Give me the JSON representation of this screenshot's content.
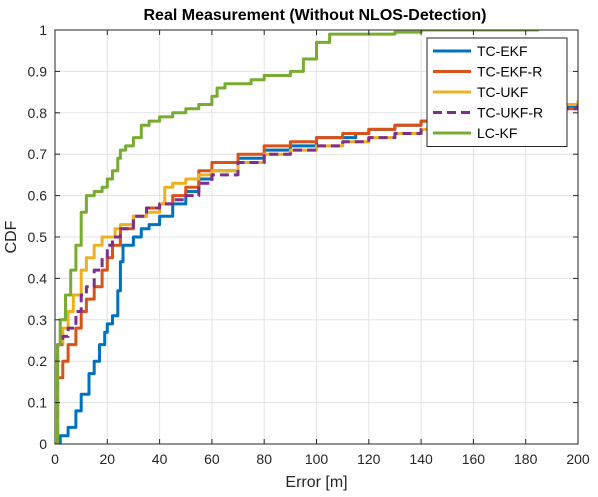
{
  "chart_data": {
    "type": "line",
    "title": "Real Measurement (Without NLOS-Detection)",
    "xlabel": "Error [m]",
    "ylabel": "CDF",
    "xlim": [
      0,
      200
    ],
    "ylim": [
      0,
      1
    ],
    "xticks": [
      0,
      20,
      40,
      60,
      80,
      100,
      120,
      140,
      160,
      180,
      200
    ],
    "yticks": [
      0,
      0.1,
      0.2,
      0.3,
      0.4,
      0.5,
      0.6,
      0.7,
      0.8,
      0.9,
      1
    ],
    "ytick_labels": [
      "0",
      "0.1",
      "0.2",
      "0.3",
      "0.4",
      "0.5",
      "0.6",
      "0.7",
      "0.8",
      "0.9",
      "1"
    ],
    "grid": true,
    "legend_position": "top-right",
    "series": [
      {
        "name": "TC-EKF",
        "color": "#0072BD",
        "style": "solid",
        "x": [
          0,
          2,
          5,
          8,
          10,
          13,
          15,
          17,
          19,
          20,
          22,
          24,
          25,
          26,
          30,
          33,
          36,
          40,
          45,
          50,
          55,
          60,
          70,
          80,
          90,
          100,
          110,
          115,
          120,
          130,
          140,
          150,
          160,
          170,
          180,
          190,
          200
        ],
        "y": [
          0,
          0.02,
          0.04,
          0.08,
          0.12,
          0.17,
          0.2,
          0.24,
          0.27,
          0.29,
          0.31,
          0.37,
          0.44,
          0.48,
          0.5,
          0.52,
          0.53,
          0.55,
          0.58,
          0.61,
          0.64,
          0.66,
          0.69,
          0.71,
          0.72,
          0.74,
          0.74,
          0.75,
          0.76,
          0.77,
          0.78,
          0.79,
          0.8,
          0.805,
          0.81,
          0.815,
          0.82
        ]
      },
      {
        "name": "TC-EKF-R",
        "color": "#D95319",
        "style": "solid",
        "x": [
          0,
          1,
          3,
          5,
          8,
          10,
          12,
          15,
          18,
          20,
          22,
          25,
          30,
          35,
          40,
          45,
          50,
          55,
          60,
          70,
          80,
          90,
          100,
          110,
          115,
          120,
          130,
          140,
          150,
          160,
          170,
          180,
          190,
          200
        ],
        "y": [
          0,
          0.16,
          0.2,
          0.24,
          0.28,
          0.32,
          0.35,
          0.38,
          0.42,
          0.45,
          0.48,
          0.52,
          0.55,
          0.57,
          0.58,
          0.6,
          0.62,
          0.66,
          0.68,
          0.7,
          0.72,
          0.73,
          0.74,
          0.75,
          0.75,
          0.76,
          0.77,
          0.78,
          0.79,
          0.795,
          0.8,
          0.805,
          0.81,
          0.82
        ]
      },
      {
        "name": "TC-UKF",
        "color": "#EDB120",
        "style": "solid",
        "x": [
          0,
          1,
          3,
          5,
          7,
          10,
          12,
          15,
          18,
          20,
          23,
          25,
          30,
          35,
          40,
          42,
          45,
          50,
          55,
          60,
          70,
          80,
          90,
          100,
          110,
          120,
          130,
          140,
          150,
          160,
          170,
          180,
          190,
          200
        ],
        "y": [
          0,
          0.24,
          0.28,
          0.32,
          0.36,
          0.42,
          0.45,
          0.48,
          0.5,
          0.5,
          0.52,
          0.53,
          0.55,
          0.56,
          0.58,
          0.62,
          0.63,
          0.64,
          0.65,
          0.66,
          0.68,
          0.7,
          0.71,
          0.72,
          0.73,
          0.74,
          0.75,
          0.76,
          0.78,
          0.79,
          0.8,
          0.81,
          0.82,
          0.83
        ]
      },
      {
        "name": "TC-UKF-R",
        "color": "#7E2F8E",
        "style": "dashed",
        "x": [
          0,
          1,
          3,
          5,
          8,
          10,
          12,
          15,
          18,
          20,
          22,
          25,
          30,
          35,
          40,
          45,
          50,
          55,
          60,
          70,
          80,
          90,
          100,
          110,
          120,
          130,
          140,
          150,
          160,
          170,
          180,
          190,
          200
        ],
        "y": [
          0,
          0.24,
          0.26,
          0.28,
          0.32,
          0.36,
          0.38,
          0.42,
          0.45,
          0.48,
          0.5,
          0.52,
          0.55,
          0.57,
          0.58,
          0.59,
          0.6,
          0.63,
          0.65,
          0.68,
          0.7,
          0.71,
          0.72,
          0.73,
          0.74,
          0.75,
          0.76,
          0.77,
          0.78,
          0.79,
          0.8,
          0.81,
          0.82
        ]
      },
      {
        "name": "LC-KF",
        "color": "#77AC30",
        "style": "solid",
        "x": [
          0,
          1,
          2,
          4,
          6,
          8,
          10,
          12,
          15,
          18,
          20,
          22,
          24,
          25,
          27,
          30,
          33,
          36,
          40,
          45,
          50,
          55,
          60,
          62,
          65,
          70,
          75,
          80,
          85,
          90,
          95,
          100,
          105,
          110,
          120,
          130,
          140,
          150,
          160,
          170,
          180,
          185
        ],
        "y": [
          0,
          0.24,
          0.3,
          0.36,
          0.42,
          0.48,
          0.56,
          0.6,
          0.61,
          0.62,
          0.64,
          0.66,
          0.69,
          0.71,
          0.72,
          0.74,
          0.77,
          0.78,
          0.79,
          0.8,
          0.81,
          0.82,
          0.84,
          0.86,
          0.87,
          0.87,
          0.88,
          0.89,
          0.89,
          0.9,
          0.93,
          0.97,
          0.99,
          0.99,
          0.99,
          0.995,
          1,
          1,
          1,
          1,
          1,
          1
        ]
      }
    ]
  }
}
